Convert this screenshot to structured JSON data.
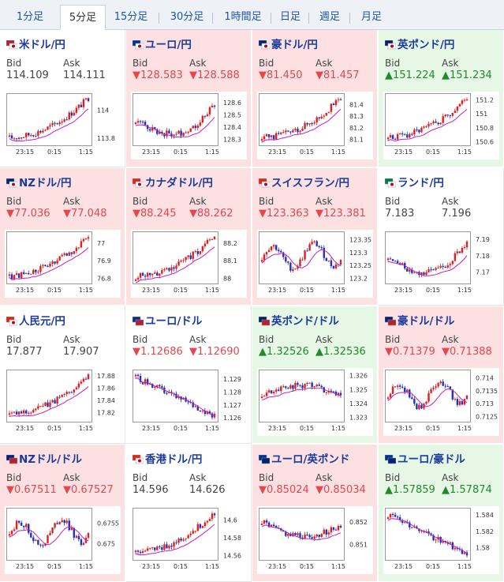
{
  "colors": {
    "up_bg": "#e6f7e6",
    "down_bg": "#fde0e2",
    "red": "#e5464f",
    "green": "#1f8a2c",
    "title": "#1a3a9c"
  },
  "tabs": [
    {
      "label": "1分足",
      "active": false
    },
    {
      "label": "5分足",
      "active": true
    },
    {
      "label": "15分足",
      "active": false
    },
    {
      "label": "30分足",
      "active": false
    },
    {
      "label": "1時間足",
      "active": false
    },
    {
      "label": "日足",
      "active": false
    },
    {
      "label": "週足",
      "active": false
    },
    {
      "label": "月足",
      "active": false
    }
  ],
  "bid_label": "Bid",
  "ask_label": "Ask",
  "x_ticks": [
    "23:15",
    "0:15",
    "1:15"
  ],
  "pairs": [
    {
      "name": "米ドル/円",
      "flag": "flag-us-jp-icon",
      "state": "flat",
      "bid": "114.109",
      "ask": "114.111",
      "arrow": "",
      "chart_data": {
        "type": "candlestick",
        "y_ticks": [
          "114",
          "113.8"
        ],
        "ylim": [
          113.75,
          114.1
        ],
        "trend": "up",
        "ma": "up"
      }
    },
    {
      "name": "ユーロ/円",
      "flag": "flag-eu-jp-icon",
      "state": "down",
      "bid": "128.583",
      "ask": "128.588",
      "arrow": "▼",
      "chart_data": {
        "type": "candlestick",
        "y_ticks": [
          "128.6",
          "128.5",
          "128.4",
          "128.3"
        ],
        "ylim": [
          128.25,
          128.65
        ],
        "trend": "v",
        "ma": "flat"
      }
    },
    {
      "name": "豪ドル/円",
      "flag": "flag-au-jp-icon",
      "state": "down",
      "bid": "81.450",
      "ask": "81.457",
      "arrow": "▼",
      "chart_data": {
        "type": "candlestick",
        "y_ticks": [
          "81.4",
          "81.3",
          "81.2",
          "81.1"
        ],
        "ylim": [
          81.05,
          81.47
        ],
        "trend": "up",
        "ma": "up"
      }
    },
    {
      "name": "英ポンド/円",
      "flag": "flag-gb-jp-icon",
      "state": "up",
      "bid": "151.224",
      "ask": "151.234",
      "arrow": "▲",
      "chart_data": {
        "type": "candlestick",
        "y_ticks": [
          "151.2",
          "151",
          "150.8",
          "150.6"
        ],
        "ylim": [
          150.55,
          151.25
        ],
        "trend": "up",
        "ma": "up"
      }
    },
    {
      "name": "NZドル/円",
      "flag": "flag-nz-jp-icon",
      "state": "down",
      "bid": "77.036",
      "ask": "77.048",
      "arrow": "▼",
      "chart_data": {
        "type": "candlestick",
        "y_ticks": [
          "77",
          "76.9",
          "76.8"
        ],
        "ylim": [
          76.77,
          77.05
        ],
        "trend": "up",
        "ma": "up"
      }
    },
    {
      "name": "カナダドル/円",
      "flag": "flag-ca-jp-icon",
      "state": "down",
      "bid": "88.245",
      "ask": "88.262",
      "arrow": "▼",
      "chart_data": {
        "type": "candlestick",
        "y_ticks": [
          "88.2",
          "88.1",
          "88"
        ],
        "ylim": [
          87.97,
          88.25
        ],
        "trend": "up",
        "ma": "up"
      }
    },
    {
      "name": "スイスフラン/円",
      "flag": "flag-ch-jp-icon",
      "state": "down",
      "bid": "123.363",
      "ask": "123.381",
      "arrow": "▼",
      "chart_data": {
        "type": "candlestick",
        "y_ticks": [
          "123.35",
          "123.3",
          "123.25",
          "123.2"
        ],
        "ylim": [
          123.18,
          123.37
        ],
        "trend": "choppy",
        "ma": "flat"
      }
    },
    {
      "name": "ランド/円",
      "flag": "flag-za-jp-icon",
      "state": "flat",
      "bid": "7.183",
      "ask": "7.196",
      "arrow": "",
      "chart_data": {
        "type": "candlestick",
        "y_ticks": [
          "7.19",
          "7.18",
          "7.17"
        ],
        "ylim": [
          7.163,
          7.193
        ],
        "trend": "v",
        "ma": "flat"
      }
    },
    {
      "name": "人民元/円",
      "flag": "flag-cn-jp-icon",
      "state": "flat",
      "bid": "17.877",
      "ask": "17.907",
      "arrow": "",
      "chart_data": {
        "type": "candlestick",
        "y_ticks": [
          "17.88",
          "17.86",
          "17.84",
          "17.82"
        ],
        "ylim": [
          17.805,
          17.885
        ],
        "trend": "up",
        "ma": "up"
      }
    },
    {
      "name": "ユーロ/ドル",
      "flag": "flag-eu-us-icon",
      "state": "flat",
      "bid": "1.12686",
      "ask": "1.12690",
      "arrow": "▼",
      "chart_data": {
        "type": "candlestick",
        "y_ticks": [
          "1.129",
          "1.128",
          "1.127",
          "1.126"
        ],
        "ylim": [
          1.1257,
          1.1295
        ],
        "trend": "down",
        "ma": "down"
      }
    },
    {
      "name": "英ポンド/ドル",
      "flag": "flag-gb-us-icon",
      "state": "up",
      "bid": "1.32526",
      "ask": "1.32536",
      "arrow": "▲",
      "chart_data": {
        "type": "candlestick",
        "y_ticks": [
          "1.326",
          "1.325",
          "1.324",
          "1.323"
        ],
        "ylim": [
          1.3227,
          1.3262
        ],
        "trend": "hump",
        "ma": "flat"
      }
    },
    {
      "name": "豪ドル/ドル",
      "flag": "flag-au-us-icon",
      "state": "down",
      "bid": "0.71379",
      "ask": "0.71388",
      "arrow": "▼",
      "chart_data": {
        "type": "candlestick",
        "y_ticks": [
          "0.714",
          "0.7135",
          "0.713",
          "0.7125"
        ],
        "ylim": [
          0.7123,
          0.7142
        ],
        "trend": "choppy",
        "ma": "flat"
      }
    },
    {
      "name": "NZドル/ドル",
      "flag": "flag-nz-us-icon",
      "state": "down",
      "bid": "0.67511",
      "ask": "0.67527",
      "arrow": "▼",
      "chart_data": {
        "type": "candlestick",
        "y_ticks": [
          "0.6755",
          "0.675"
        ],
        "ylim": [
          0.6746,
          0.6758
        ],
        "trend": "choppy",
        "ma": "flat"
      }
    },
    {
      "name": "香港ドル/円",
      "flag": "flag-hk-jp-icon",
      "state": "flat",
      "bid": "14.596",
      "ask": "14.626",
      "arrow": "",
      "chart_data": {
        "type": "candlestick",
        "y_ticks": [
          "14.6",
          "14.58",
          "14.56"
        ],
        "ylim": [
          14.555,
          14.61
        ],
        "trend": "up",
        "ma": "up"
      }
    },
    {
      "name": "ユーロ/英ポンド",
      "flag": "flag-eu-gb-icon",
      "state": "down",
      "bid": "0.85024",
      "ask": "0.85034",
      "arrow": "▼",
      "chart_data": {
        "type": "candlestick",
        "y_ticks": [
          "0.852",
          "0.851"
        ],
        "ylim": [
          0.8503,
          0.8525
        ],
        "trend": "u",
        "ma": "down"
      }
    },
    {
      "name": "ユーロ/豪ドル",
      "flag": "flag-eu-au-icon",
      "state": "up",
      "bid": "1.57859",
      "ask": "1.57874",
      "arrow": "▲",
      "chart_data": {
        "type": "candlestick",
        "y_ticks": [
          "1.584",
          "1.582",
          "1.58"
        ],
        "ylim": [
          1.5785,
          1.5845
        ],
        "trend": "down",
        "ma": "down"
      }
    }
  ]
}
